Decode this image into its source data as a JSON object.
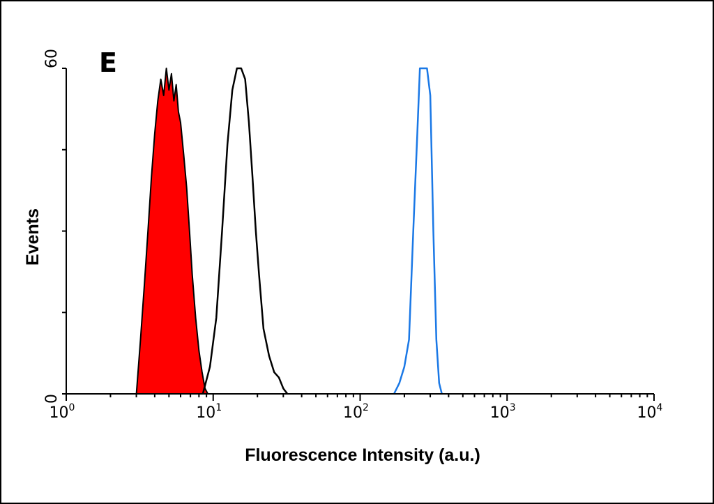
{
  "panel_label": "E",
  "colors": {
    "axis": "#000000",
    "control_fill": "#ff0000",
    "control_outline": "#000000",
    "sample_outline": "#000000",
    "bright_outline": "#1a78e6"
  },
  "chart_data": {
    "type": "area",
    "xscale": "log",
    "xlim": [
      1,
      10000
    ],
    "ylim": [
      0,
      60
    ],
    "xlabel": "Fluorescence Intensity (a.u.)",
    "ylabel": "Events",
    "x_ticks": [
      {
        "base": "10",
        "exp": "0",
        "value": 1
      },
      {
        "base": "10",
        "exp": "1",
        "value": 10
      },
      {
        "base": "10",
        "exp": "2",
        "value": 100
      },
      {
        "base": "10",
        "exp": "3",
        "value": 1000
      },
      {
        "base": "10",
        "exp": "4",
        "value": 10000
      }
    ],
    "y_ticks": [
      {
        "label": "0",
        "value": 0
      },
      {
        "label": "60",
        "value": 60
      }
    ],
    "grid": false,
    "legend": "none",
    "series": [
      {
        "style": "filled",
        "color": "#ff0000",
        "x": [
          3.0,
          3.2,
          3.4,
          3.6,
          3.8,
          4.0,
          4.2,
          4.4,
          4.6,
          4.8,
          5.0,
          5.2,
          5.4,
          5.6,
          5.8,
          6.0,
          6.3,
          6.6,
          6.9,
          7.2,
          7.6,
          8.0,
          8.4,
          8.8,
          9.2
        ],
        "y": [
          0,
          10,
          20,
          30,
          40,
          48,
          54,
          58,
          55,
          60,
          56,
          59,
          54,
          57,
          52,
          50,
          44,
          38,
          30,
          22,
          14,
          8,
          4,
          1,
          0
        ]
      },
      {
        "style": "outline",
        "color": "#000000",
        "x": [
          8.5,
          9.5,
          10.5,
          11.5,
          12.5,
          13.5,
          14.5,
          15.5,
          16.5,
          17.5,
          18.5,
          19.5,
          20.5,
          22,
          24,
          26,
          28,
          30,
          32
        ],
        "y": [
          0,
          5,
          14,
          30,
          46,
          56,
          60,
          60,
          58,
          50,
          40,
          30,
          22,
          12,
          7,
          4,
          3,
          1,
          0
        ]
      },
      {
        "style": "outline",
        "color": "#1a78e6",
        "x": [
          170,
          185,
          200,
          215,
          230,
          245,
          255,
          270,
          285,
          300,
          315,
          330,
          345,
          360
        ],
        "y": [
          0,
          2,
          5,
          10,
          30,
          48,
          60,
          60,
          60,
          55,
          30,
          10,
          2,
          0
        ]
      }
    ]
  }
}
